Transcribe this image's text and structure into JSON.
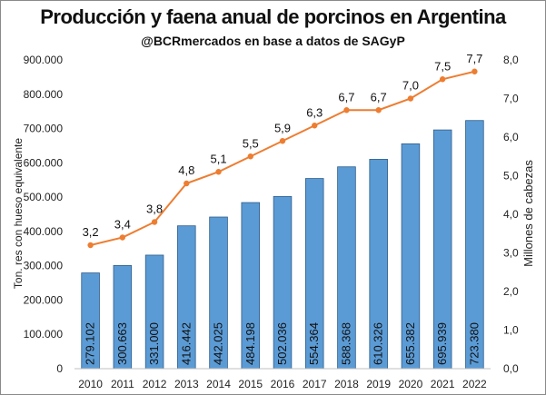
{
  "chart_data": {
    "type": "bar+line",
    "title": "Producción y faena anual de porcinos en Argentina",
    "subtitle": "@BCRmercados en base a datos de SAGyP",
    "categories": [
      "2010",
      "2011",
      "2012",
      "2013",
      "2014",
      "2015",
      "2016",
      "2017",
      "2018",
      "2019",
      "2020",
      "2021",
      "2022"
    ],
    "series": [
      {
        "type": "bar",
        "axis": "left",
        "values": [
          279102,
          300663,
          331000,
          416442,
          442025,
          484198,
          502036,
          554364,
          588368,
          610326,
          655382,
          695939,
          723380
        ],
        "labels": [
          "279.102",
          "300.663",
          "331.000",
          "416.442",
          "442.025",
          "484.198",
          "502.036",
          "554.364",
          "588.368",
          "610.326",
          "655.382",
          "695.939",
          "723.380"
        ],
        "color": "#5b9bd5"
      },
      {
        "type": "line",
        "axis": "right",
        "values": [
          3.2,
          3.4,
          3.8,
          4.8,
          5.1,
          5.5,
          5.9,
          6.3,
          6.7,
          6.7,
          7.0,
          7.5,
          7.7
        ],
        "labels": [
          "3,2",
          "3,4",
          "3,8",
          "4,8",
          "5,1",
          "5,5",
          "5,9",
          "6,3",
          "6,7",
          "6,7",
          "7,0",
          "7,5",
          "7,7"
        ],
        "color": "#ed7d31"
      }
    ],
    "ylabel_left": "Ton. res con hueso equivalente",
    "ylabel_right": "Millones de cabezas",
    "ylim_left": [
      0,
      900000
    ],
    "ylim_right": [
      0,
      8
    ],
    "yticks_left": [
      "0",
      "100.000",
      "200.000",
      "300.000",
      "400.000",
      "500.000",
      "600.000",
      "700.000",
      "800.000",
      "900.000"
    ],
    "yticks_right": [
      "0,0",
      "1,0",
      "2,0",
      "3,0",
      "4,0",
      "5,0",
      "6,0",
      "7,0",
      "8,0"
    ],
    "grid": false,
    "legend": "none"
  }
}
